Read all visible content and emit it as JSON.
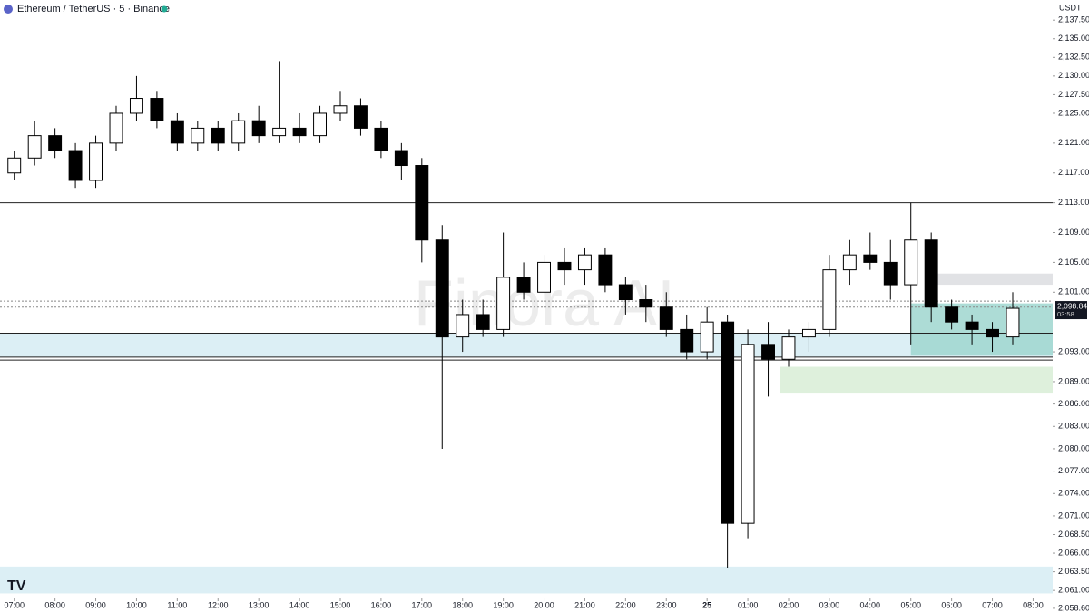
{
  "chart_data": {
    "type": "candlestick",
    "title": "Ethereum / TetherUS · 5 · Binance",
    "y_unit": "USDT",
    "watermark": "Finora AI",
    "x": [
      0,
      0.5,
      1,
      1.5,
      2,
      2.5,
      3,
      3.5,
      4,
      4.5,
      5,
      5.5,
      6,
      6.5,
      7,
      7.5,
      8,
      8.5,
      9,
      9.5,
      10,
      10.5,
      11,
      11.5,
      12,
      12.5,
      13,
      13.5,
      14,
      14.5,
      15,
      15.5,
      16,
      16.5,
      17,
      17.5,
      18,
      18.5,
      19,
      19.5,
      20,
      20.5,
      21,
      21.5,
      22,
      22.5,
      23,
      23.5,
      24,
      24.5
    ],
    "open": [
      2117,
      2119,
      2122,
      2120,
      2116,
      2121,
      2125,
      2127,
      2124,
      2121,
      2123,
      2121,
      2124,
      2122,
      2123,
      2122,
      2125,
      2126,
      2123,
      2120,
      2118,
      2108,
      2095,
      2098,
      2096,
      2103,
      2101,
      2105,
      2104,
      2106,
      2102,
      2100,
      2099,
      2096,
      2093,
      2097,
      2070,
      2094,
      2092,
      2095,
      2096,
      2104,
      2106,
      2105,
      2102,
      2108,
      2099,
      2097,
      2096,
      2095
    ],
    "high": [
      2120,
      2124,
      2123,
      2121,
      2122,
      2126,
      2130,
      2128,
      2125,
      2124,
      2124,
      2125,
      2126,
      2132,
      2125,
      2126,
      2128,
      2127,
      2124,
      2121,
      2119,
      2110,
      2100,
      2100,
      2109,
      2105,
      2106,
      2107,
      2107,
      2107,
      2103,
      2102,
      2101,
      2098,
      2099,
      2098,
      2096,
      2097,
      2096,
      2097,
      2106,
      2108,
      2109,
      2108,
      2113,
      2109,
      2100,
      2098,
      2097,
      2101
    ],
    "low": [
      2116,
      2118,
      2119,
      2115,
      2115,
      2120,
      2124,
      2123,
      2120,
      2120,
      2120,
      2120,
      2121,
      2121,
      2121,
      2121,
      2124,
      2122,
      2119,
      2116,
      2105,
      2080,
      2093,
      2095,
      2095,
      2100,
      2100,
      2102,
      2102,
      2101,
      2098,
      2097,
      2095,
      2092,
      2092,
      2064,
      2068,
      2087,
      2091,
      2093,
      2095,
      2102,
      2104,
      2100,
      2094,
      2097,
      2096,
      2094,
      2093,
      2094
    ],
    "close": [
      2119,
      2122,
      2120,
      2116,
      2121,
      2125,
      2127,
      2124,
      2121,
      2123,
      2121,
      2124,
      2122,
      2123,
      2122,
      2125,
      2126,
      2123,
      2120,
      2118,
      2108,
      2095,
      2098,
      2096,
      2103,
      2101,
      2105,
      2104,
      2106,
      2102,
      2100,
      2099,
      2096,
      2093,
      2097,
      2070,
      2094,
      2092,
      2095,
      2096,
      2104,
      2106,
      2105,
      2102,
      2108,
      2099,
      2097,
      2096,
      2095,
      2098.84
    ],
    "xlim": [
      -0.35,
      25.48
    ],
    "xticks": [
      {
        "value": 0,
        "label": "07:00"
      },
      {
        "value": 1,
        "label": "08:00"
      },
      {
        "value": 2,
        "label": "09:00"
      },
      {
        "value": 3,
        "label": "10:00"
      },
      {
        "value": 4,
        "label": "11:00"
      },
      {
        "value": 5,
        "label": "12:00"
      },
      {
        "value": 6,
        "label": "13:00"
      },
      {
        "value": 7,
        "label": "14:00"
      },
      {
        "value": 8,
        "label": "15:00"
      },
      {
        "value": 9,
        "label": "16:00"
      },
      {
        "value": 10,
        "label": "17:00"
      },
      {
        "value": 11,
        "label": "18:00"
      },
      {
        "value": 12,
        "label": "19:00"
      },
      {
        "value": 13,
        "label": "20:00"
      },
      {
        "value": 14,
        "label": "21:00"
      },
      {
        "value": 15,
        "label": "22:00"
      },
      {
        "value": 16,
        "label": "23:00"
      },
      {
        "value": 17,
        "label": "25"
      },
      {
        "value": 18,
        "label": "01:00"
      },
      {
        "value": 19,
        "label": "02:00"
      },
      {
        "value": 20,
        "label": "03:00"
      },
      {
        "value": 21,
        "label": "04:00"
      },
      {
        "value": 22,
        "label": "05:00"
      },
      {
        "value": 23,
        "label": "06:00"
      },
      {
        "value": 24,
        "label": "07:00"
      },
      {
        "value": 25,
        "label": "08:00"
      }
    ],
    "ylim": [
      2058.1,
      2140.2
    ],
    "yticks": [
      {
        "value": 2137.5,
        "label": "2,137.50"
      },
      {
        "value": 2135,
        "label": "2,135.00"
      },
      {
        "value": 2132.5,
        "label": "2,132.50"
      },
      {
        "value": 2130,
        "label": "2,130.00"
      },
      {
        "value": 2127.5,
        "label": "2,127.50"
      },
      {
        "value": 2125,
        "label": "2,125.00"
      },
      {
        "value": 2121,
        "label": "2,121.00"
      },
      {
        "value": 2117,
        "label": "2,117.00"
      },
      {
        "value": 2113,
        "label": "2,113.00"
      },
      {
        "value": 2109,
        "label": "2,109.00"
      },
      {
        "value": 2105,
        "label": "2,105.00"
      },
      {
        "value": 2101,
        "label": "2,101.00"
      },
      {
        "value": 2093,
        "label": "2,093.00"
      },
      {
        "value": 2089,
        "label": "2,089.00"
      },
      {
        "value": 2086,
        "label": "2,086.00"
      },
      {
        "value": 2083,
        "label": "2,083.00"
      },
      {
        "value": 2080,
        "label": "2,080.00"
      },
      {
        "value": 2077,
        "label": "2,077.00"
      },
      {
        "value": 2074,
        "label": "2,074.00"
      },
      {
        "value": 2071,
        "label": "2,071.00"
      },
      {
        "value": 2068.5,
        "label": "2,068.50"
      },
      {
        "value": 2066,
        "label": "2,066.00"
      },
      {
        "value": 2063.5,
        "label": "2,063.50"
      },
      {
        "value": 2061,
        "label": "2,061.00"
      },
      {
        "value": 2058.6,
        "label": "2,058.60"
      }
    ],
    "up_color": "#ffffff",
    "down_color": "#000000",
    "zones": [
      {
        "top": 2095.5,
        "bottom": 2092.3,
        "color": "#d6ecf3"
      },
      {
        "top": 2064.2,
        "bottom": 2060.6,
        "color": "#d6ecf3"
      },
      {
        "top": 2091,
        "bottom": 2087.4,
        "start": 18.8,
        "color": "#d8edd6"
      },
      {
        "top": 2099.5,
        "bottom": 2092.5,
        "start": 22,
        "color": "#9fd6cf"
      },
      {
        "top": 2103.5,
        "bottom": 2102,
        "start": 22.5,
        "color": "#dcdde0"
      }
    ],
    "levels": [
      {
        "value": 2113,
        "style": "solid"
      },
      {
        "value": 2095.5,
        "style": "solid"
      },
      {
        "value": 2092.3,
        "style": "solid"
      },
      {
        "value": 2091.9,
        "style": "solid"
      },
      {
        "value": 2099.8,
        "style": "dotted"
      },
      {
        "value": 2099,
        "style": "dotted"
      }
    ],
    "last_price": 2098.84,
    "last_price_label": "2,098.84",
    "countdown": "03:58"
  }
}
